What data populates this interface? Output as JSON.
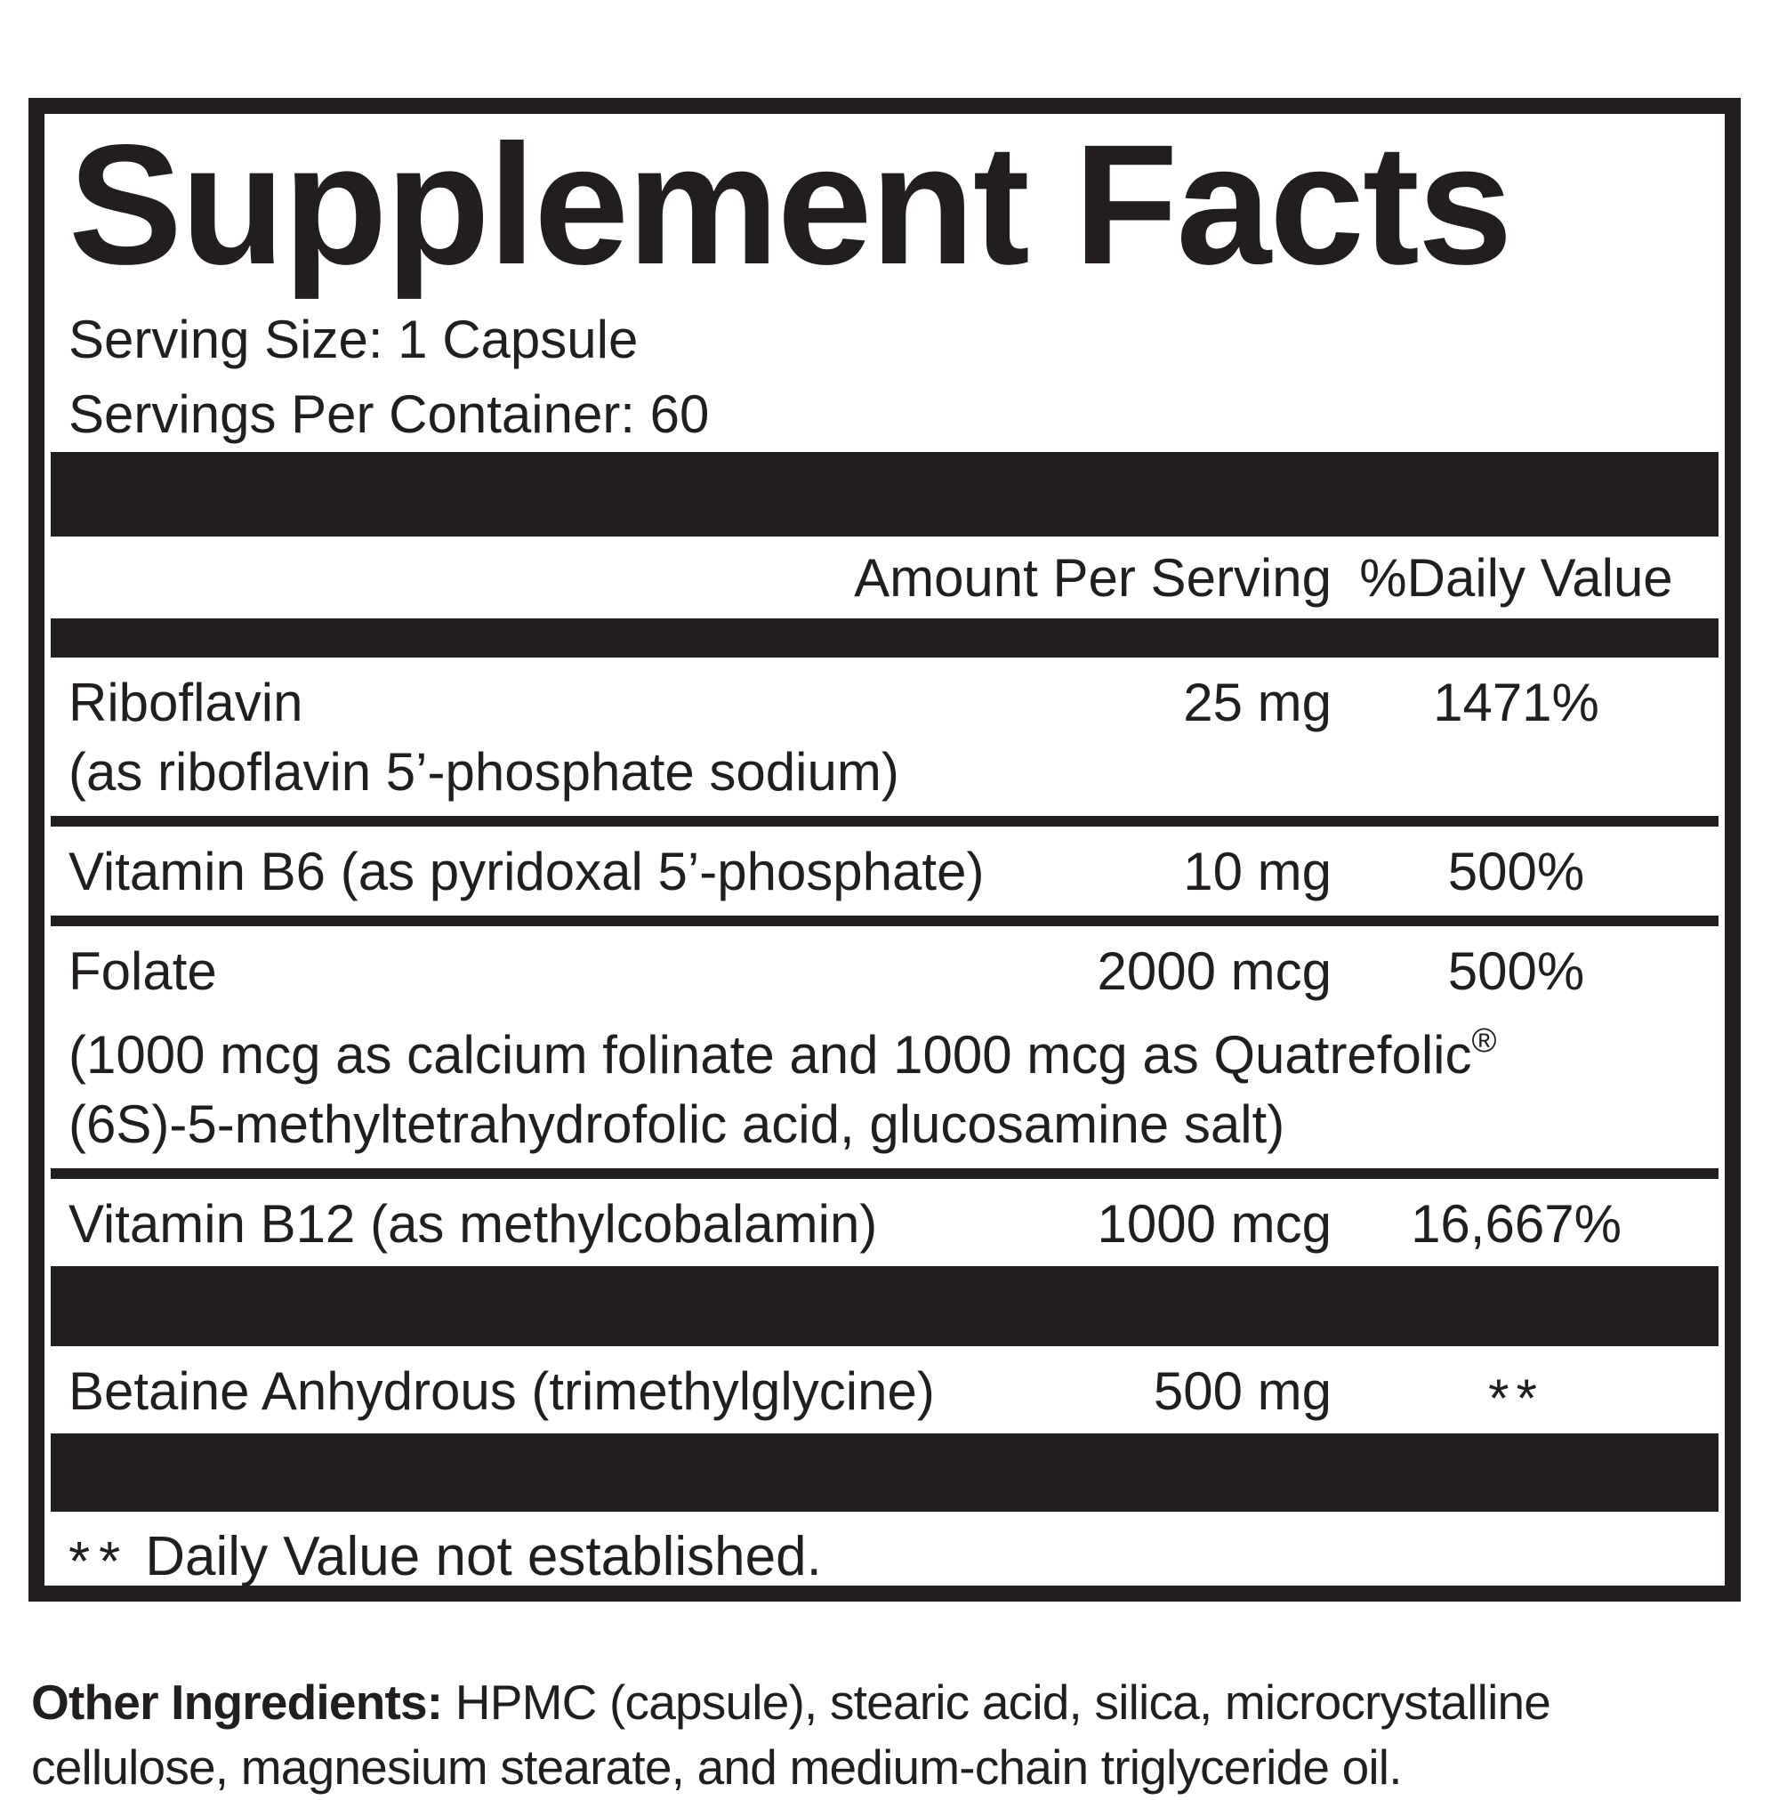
{
  "panel": {
    "title": "Supplement Facts",
    "serving_size": "Serving Size: 1 Capsule",
    "servings_per_container": "Servings Per Container: 60"
  },
  "table": {
    "amount_header": "Amount Per Serving",
    "dv_header": "%Daily Value",
    "rows": [
      {
        "name": "Riboflavin",
        "amount": "25 mg",
        "dv": "1471%",
        "desc_lines": [
          "(as riboflavin 5’-phosphate sodium)"
        ]
      },
      {
        "name": "Vitamin B6 (as pyridoxal 5’-phosphate)",
        "amount": "10 mg",
        "dv": "500%"
      },
      {
        "name": "Folate",
        "amount": "2000 mcg",
        "dv": "500%",
        "desc_lines": [
          "(1000 mcg as calcium folinate and 1000 mcg as Quatrefolic",
          "(6S)-5-methyltetrahydrofolic acid, glucosamine salt)"
        ],
        "reg_mark": "®"
      },
      {
        "name": "Vitamin B12 (as methylcobalamin)",
        "amount": "1000 mcg",
        "dv": "16,667%"
      },
      {
        "name": "Betaine Anhydrous (trimethylglycine)",
        "amount": "500 mg",
        "dv": "**"
      }
    ],
    "footnote_marker": "**",
    "footnote": "Daily Value not established."
  },
  "other_ingredients": {
    "label": "Other Ingredients:",
    "text": "HPMC (capsule), stearic acid, silica, microcrystalline cellulose, magnesium stearate, and medium-chain triglyceride oil."
  },
  "colors": {
    "ink": "#221e1f",
    "background": "#ffffff"
  }
}
